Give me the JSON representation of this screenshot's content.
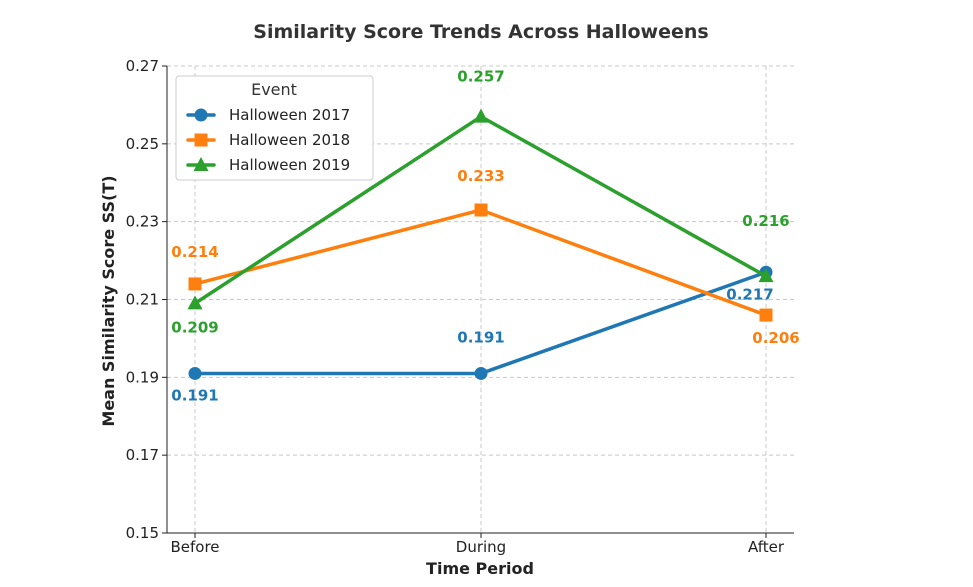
{
  "chart_data": {
    "type": "line",
    "title": "Similarity Score Trends Across Halloweens",
    "xlabel": "Time Period",
    "ylabel": "Mean Similarity Score SS(T)",
    "categories": [
      "Before",
      "During",
      "After"
    ],
    "ylim": [
      0.15,
      0.27
    ],
    "yticks": [
      "0.15",
      "0.17",
      "0.19",
      "0.21",
      "0.23",
      "0.25",
      "0.27"
    ],
    "grid": true,
    "legend": {
      "title": "Event",
      "placement": "top-left"
    },
    "series": [
      {
        "name": "Halloween 2017",
        "color": "#1f77b4",
        "marker": "circle",
        "values": [
          0.191,
          0.191,
          0.217
        ],
        "labels": [
          "0.191",
          "0.191",
          "0.217"
        ]
      },
      {
        "name": "Halloween 2018",
        "color": "#ff7f0e",
        "marker": "square",
        "values": [
          0.214,
          0.233,
          0.206
        ],
        "labels": [
          "0.214",
          "0.233",
          "0.206"
        ]
      },
      {
        "name": "Halloween 2019",
        "color": "#2ca02c",
        "marker": "triangle",
        "values": [
          0.209,
          0.257,
          0.216
        ],
        "labels": [
          "0.209",
          "0.257",
          "0.216"
        ]
      }
    ]
  }
}
